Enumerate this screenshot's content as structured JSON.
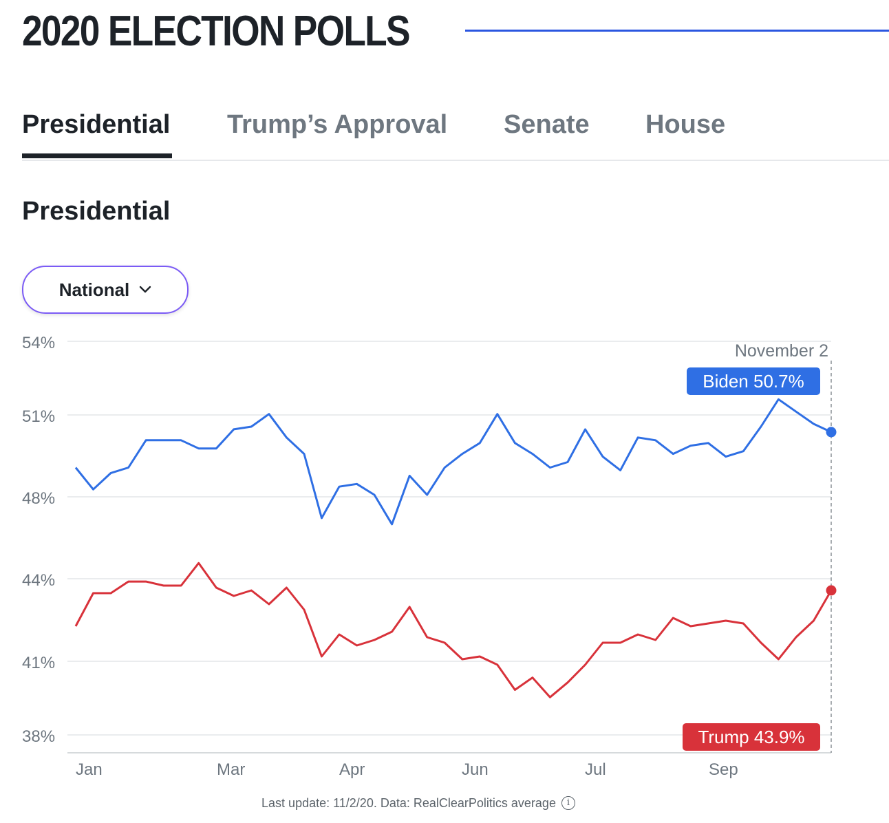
{
  "header": {
    "title": "2020 ELECTION POLLS"
  },
  "tabs": [
    {
      "label": "Presidential",
      "active": true
    },
    {
      "label": "Trump’s Approval",
      "active": false
    },
    {
      "label": "Senate",
      "active": false
    },
    {
      "label": "House",
      "active": false
    }
  ],
  "section": {
    "title": "Presidential"
  },
  "dropdown": {
    "selected": "National"
  },
  "footer": {
    "text": "Last update: 11/2/20.  Data: RealClearPolitics average"
  },
  "chart_data": {
    "type": "line",
    "y_ticks": [
      "54%",
      "51%",
      "48%",
      "44%",
      "41%",
      "38%"
    ],
    "ylim": [
      38,
      54
    ],
    "x_ticks": [
      "Jan",
      "Mar",
      "Apr",
      "Jun",
      "Jul",
      "Sep"
    ],
    "hover_date": "November 2",
    "grid": true,
    "series": [
      {
        "name": "Biden",
        "label": "Biden 50.7%",
        "color": "#2f6fe4",
        "values": [
          49.4,
          48.6,
          49.2,
          49.4,
          50.4,
          50.4,
          50.4,
          50.1,
          50.1,
          50.8,
          50.9,
          51.4,
          50.5,
          49.9,
          47.4,
          48.7,
          48.8,
          48.4,
          47.1,
          49.1,
          48.4,
          49.4,
          49.9,
          50.3,
          51.4,
          50.3,
          49.9,
          49.4,
          49.6,
          50.8,
          49.8,
          49.3,
          50.5,
          50.4,
          49.9,
          50.2,
          50.3,
          49.8,
          50.0,
          50.9,
          52.0,
          51.5,
          51.0,
          50.7
        ]
      },
      {
        "name": "Trump",
        "label": "Trump 43.9%",
        "color": "#d8323a",
        "values": [
          42.6,
          43.8,
          43.8,
          44.3,
          44.3,
          44.1,
          44.1,
          45.2,
          44.0,
          43.7,
          43.9,
          43.4,
          44.0,
          43.2,
          41.5,
          42.3,
          41.9,
          42.1,
          42.4,
          43.3,
          42.2,
          42.0,
          41.4,
          41.5,
          41.2,
          40.2,
          40.7,
          39.9,
          40.5,
          41.2,
          42.0,
          42.0,
          42.3,
          42.1,
          42.9,
          42.6,
          42.7,
          42.8,
          42.7,
          42.0,
          41.4,
          42.2,
          42.8,
          43.9
        ]
      }
    ]
  }
}
